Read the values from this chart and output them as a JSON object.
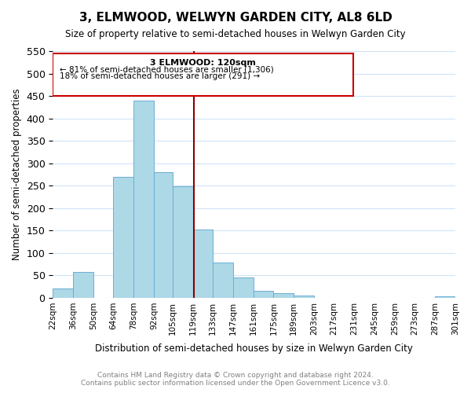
{
  "title": "3, ELMWOOD, WELWYN GARDEN CITY, AL8 6LD",
  "subtitle": "Size of property relative to semi-detached houses in Welwyn Garden City",
  "xlabel": "Distribution of semi-detached houses by size in Welwyn Garden City",
  "ylabel": "Number of semi-detached properties",
  "bar_color": "#add8e6",
  "bar_edge_color": "#6baed6",
  "grid_color": "#d0e4f7",
  "background_color": "#ffffff",
  "property_line_color": "#8b0000",
  "property_value": 120,
  "annotation_title": "3 ELMWOOD: 120sqm",
  "annotation_line1": "← 81% of semi-detached houses are smaller (1,306)",
  "annotation_line2": "18% of semi-detached houses are larger (291) →",
  "footer_line1": "Contains HM Land Registry data © Crown copyright and database right 2024.",
  "footer_line2": "Contains public sector information licensed under the Open Government Licence v3.0.",
  "bin_edges": [
    22,
    36,
    50,
    64,
    78,
    92,
    105,
    119,
    133,
    147,
    161,
    175,
    189,
    203,
    217,
    231,
    245,
    259,
    273,
    287,
    301
  ],
  "bin_labels": [
    "22sqm",
    "36sqm",
    "50sqm",
    "64sqm",
    "78sqm",
    "92sqm",
    "105sqm",
    "119sqm",
    "133sqm",
    "147sqm",
    "161sqm",
    "175sqm",
    "189sqm",
    "203sqm",
    "217sqm",
    "231sqm",
    "245sqm",
    "259sqm",
    "273sqm",
    "287sqm",
    "301sqm"
  ],
  "counts": [
    20,
    57,
    0,
    270,
    440,
    280,
    248,
    153,
    79,
    45,
    16,
    10,
    5,
    0,
    0,
    0,
    0,
    0,
    0,
    3
  ],
  "ylim": [
    0,
    550
  ],
  "yticks": [
    0,
    50,
    100,
    150,
    200,
    250,
    300,
    350,
    400,
    450,
    500,
    550
  ]
}
